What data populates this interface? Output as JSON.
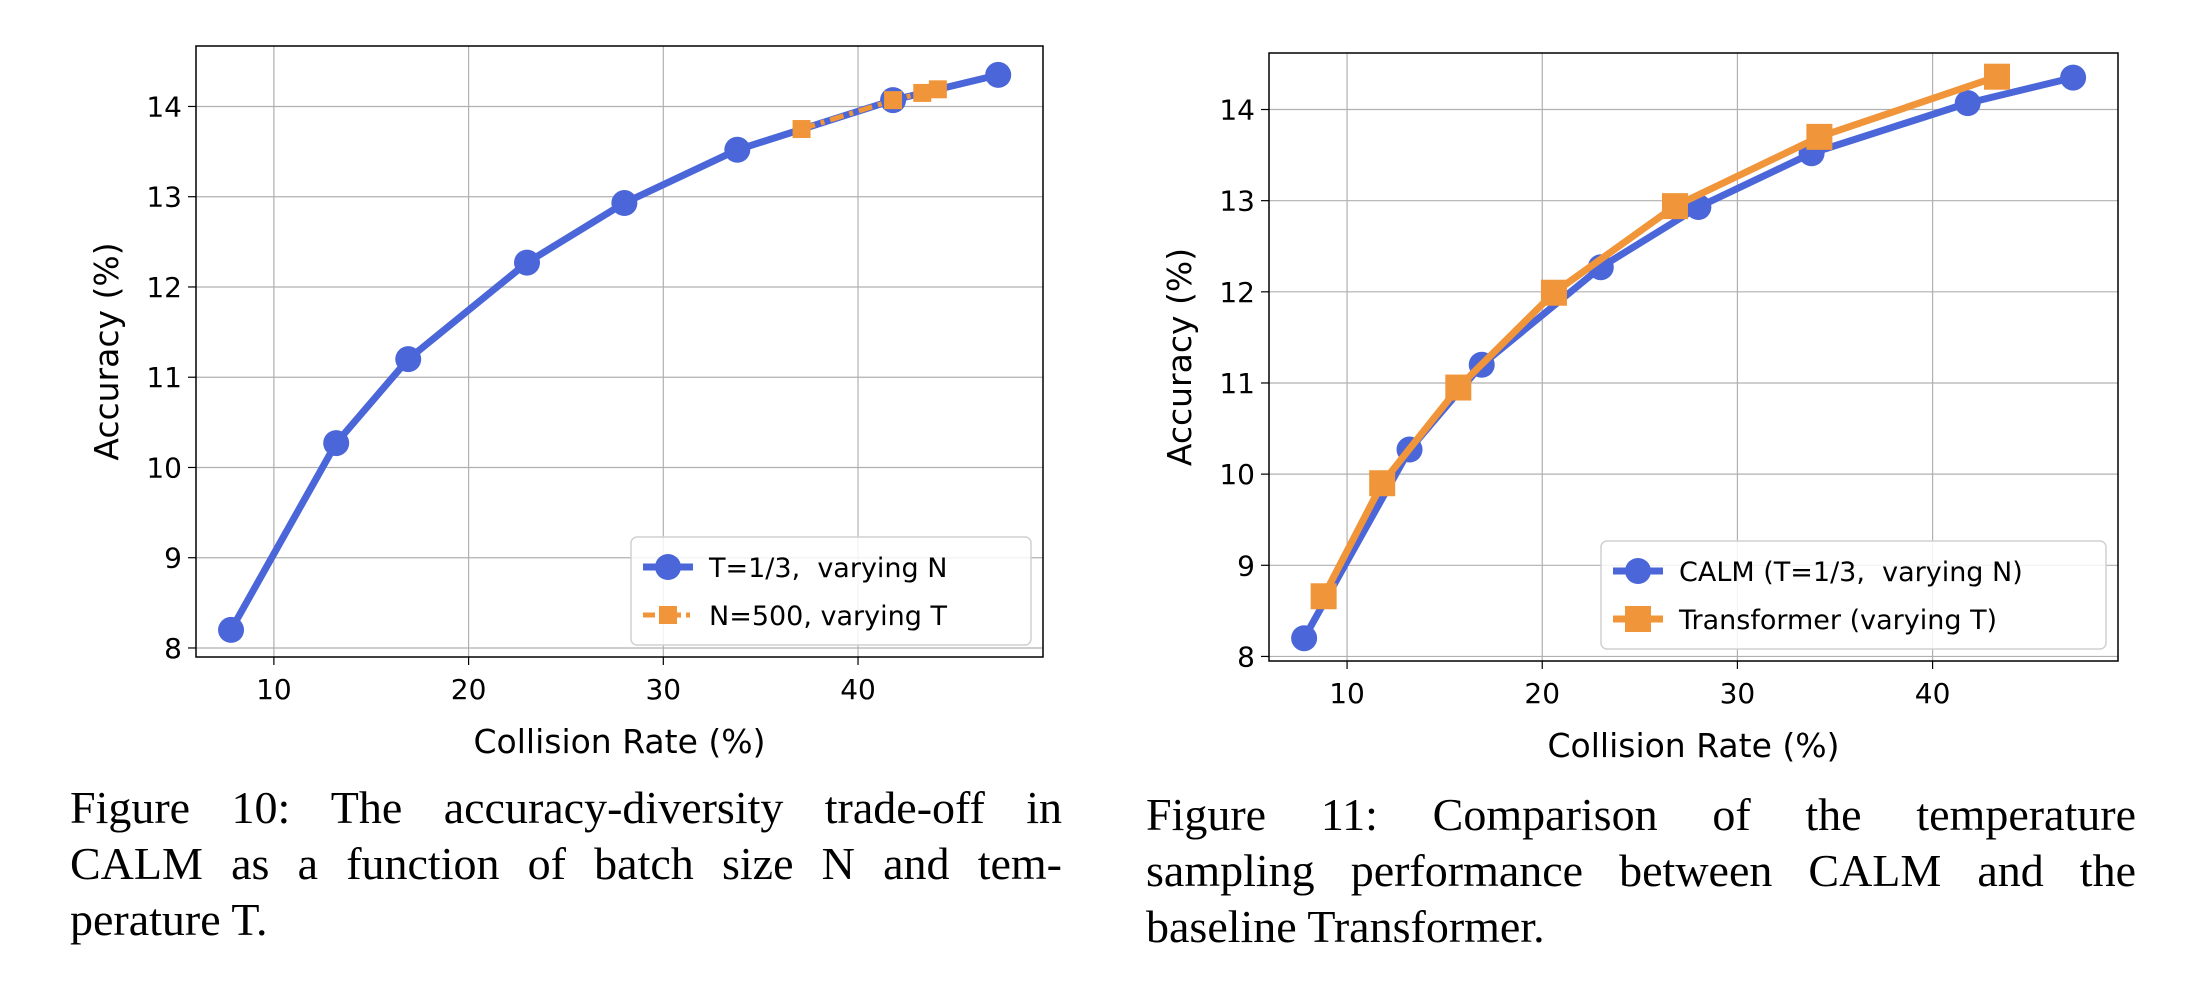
{
  "chart_data": [
    {
      "type": "line",
      "xlabel": "Collision Rate (%)",
      "ylabel": "Accuracy (%)",
      "xlim": [
        6,
        49.5
      ],
      "ylim": [
        7.9,
        14.67
      ],
      "xticks": [
        10,
        20,
        30,
        40
      ],
      "yticks": [
        8,
        9,
        10,
        11,
        12,
        13,
        14
      ],
      "grid": true,
      "legend_position": "lower-right",
      "series": [
        {
          "name": "T=1/3,  varying N",
          "color": "#4a66d8",
          "marker": "circle",
          "linestyle": "solid",
          "x": [
            7.8,
            13.2,
            16.9,
            23.0,
            28.0,
            33.8,
            41.8,
            47.2
          ],
          "y": [
            8.2,
            10.27,
            11.2,
            12.27,
            12.93,
            13.52,
            14.07,
            14.35
          ]
        },
        {
          "name": "N=500, varying T",
          "color": "#f0953a",
          "marker": "square",
          "linestyle": "dashed",
          "x": [
            37.1,
            41.8,
            43.3,
            44.1
          ],
          "y": [
            13.75,
            14.07,
            14.15,
            14.19
          ]
        }
      ],
      "caption_lines": [
        "Figure 10: The accuracy-diversity trade-off in",
        "CALM as a function of batch size N and tem-",
        "perature T."
      ]
    },
    {
      "type": "line",
      "xlabel": "Collision Rate (%)",
      "ylabel": "Accuracy (%)",
      "xlim": [
        6,
        49.5
      ],
      "ylim": [
        7.95,
        14.62
      ],
      "xticks": [
        10,
        20,
        30,
        40
      ],
      "yticks": [
        8,
        9,
        10,
        11,
        12,
        13,
        14
      ],
      "grid": true,
      "legend_position": "lower-right",
      "series": [
        {
          "name": "CALM (T=1/3,  varying N)",
          "color": "#4a66d8",
          "marker": "circle",
          "linestyle": "solid",
          "x": [
            7.8,
            13.2,
            16.9,
            23.0,
            28.0,
            33.8,
            41.8,
            47.2
          ],
          "y": [
            8.2,
            10.27,
            11.2,
            12.27,
            12.93,
            13.52,
            14.07,
            14.35
          ]
        },
        {
          "name": "Transformer (varying T)",
          "color": "#f0953a",
          "marker": "square",
          "linestyle": "solid",
          "x": [
            8.8,
            11.8,
            15.7,
            20.6,
            26.8,
            34.2,
            43.3
          ],
          "y": [
            8.66,
            9.9,
            10.95,
            11.99,
            12.94,
            13.7,
            14.36
          ]
        }
      ],
      "caption_lines": [
        "Figure 11:  Comparison of the temperature",
        "sampling performance between CALM and the",
        "baseline Transformer."
      ]
    }
  ]
}
